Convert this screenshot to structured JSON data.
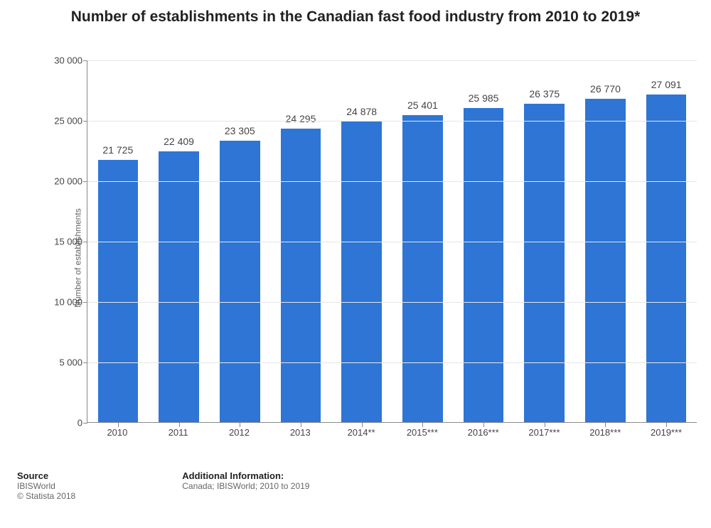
{
  "chart": {
    "type": "bar",
    "title": "Number of establishments in the Canadian fast food industry from 2010 to 2019*",
    "title_fontsize": 21,
    "title_color": "#222222",
    "background_color": "#ffffff",
    "ylabel": "Number of establishments",
    "ylabel_fontsize": 12,
    "ylabel_color": "#666666",
    "ylim_min": 0,
    "ylim_max": 30000,
    "ytick_step": 5000,
    "yticks": [
      {
        "value": 0,
        "label": "0"
      },
      {
        "value": 5000,
        "label": "5 000"
      },
      {
        "value": 10000,
        "label": "10 000"
      },
      {
        "value": 15000,
        "label": "15 000"
      },
      {
        "value": 20000,
        "label": "20 000"
      },
      {
        "value": 25000,
        "label": "25 000"
      },
      {
        "value": 30000,
        "label": "30 000"
      }
    ],
    "tick_fontsize": 13,
    "grid_color": "#e6e6e6",
    "axis_color": "#888888",
    "bar_color": "#2e75d5",
    "bar_width_ratio": 0.66,
    "bar_label_fontsize": 14,
    "bar_label_color": "#444444",
    "categories": [
      "2010",
      "2011",
      "2012",
      "2013",
      "2014**",
      "2015***",
      "2016***",
      "2017***",
      "2018***",
      "2019***"
    ],
    "values": [
      21725,
      22409,
      23305,
      24295,
      24878,
      25401,
      25985,
      26375,
      26770,
      27091
    ],
    "value_labels": [
      "21 725",
      "22 409",
      "23 305",
      "24 295",
      "24 878",
      "25 401",
      "25 985",
      "26 375",
      "26 770",
      "27 091"
    ]
  },
  "footer": {
    "source_heading": "Source",
    "source_line1": "IBISWorld",
    "source_line2": "© Statista 2018",
    "info_heading": "Additional Information:",
    "info_line1": "Canada; IBISWorld; 2010 to 2019",
    "heading_fontsize": 13,
    "line_fontsize": 12
  }
}
